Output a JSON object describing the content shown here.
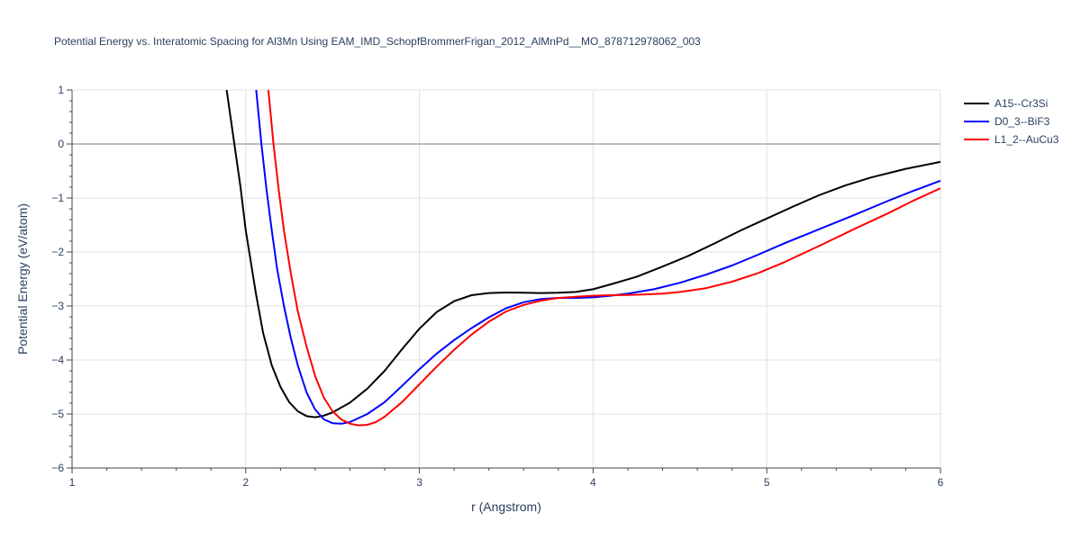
{
  "chart_data": {
    "type": "line",
    "title": "Potential Energy vs. Interatomic Spacing for Al3Mn Using EAM_IMD_SchopfBrommerFrigan_2012_AlMnPd__MO_878712978062_003",
    "xlabel": "r (Angstrom)",
    "ylabel": "Potential Energy (eV/atom)",
    "xlim": [
      1,
      6
    ],
    "ylim": [
      -6,
      1
    ],
    "xticks": [
      1,
      2,
      3,
      4,
      5,
      6
    ],
    "yticks": [
      1,
      0,
      -1,
      -2,
      -3,
      -4,
      -5,
      -6
    ],
    "x_tick_labels": [
      "1",
      "2",
      "3",
      "4",
      "5",
      "6"
    ],
    "y_tick_labels": [
      "1",
      "0",
      "−1",
      "−2",
      "−3",
      "−4",
      "−5",
      "−6"
    ],
    "grid": true,
    "legend_position": "top-right",
    "series": [
      {
        "name": "A15--Cr3Si",
        "color": "#000000",
        "points": [
          [
            1.89,
            1.0
          ],
          [
            1.93,
            0.1
          ],
          [
            1.97,
            -0.8
          ],
          [
            2.0,
            -1.6
          ],
          [
            2.03,
            -2.2
          ],
          [
            2.06,
            -2.8
          ],
          [
            2.1,
            -3.5
          ],
          [
            2.15,
            -4.1
          ],
          [
            2.2,
            -4.5
          ],
          [
            2.25,
            -4.78
          ],
          [
            2.3,
            -4.95
          ],
          [
            2.35,
            -5.04
          ],
          [
            2.4,
            -5.06
          ],
          [
            2.45,
            -5.03
          ],
          [
            2.5,
            -4.97
          ],
          [
            2.6,
            -4.79
          ],
          [
            2.7,
            -4.53
          ],
          [
            2.8,
            -4.2
          ],
          [
            2.9,
            -3.8
          ],
          [
            3.0,
            -3.42
          ],
          [
            3.1,
            -3.11
          ],
          [
            3.2,
            -2.91
          ],
          [
            3.3,
            -2.8
          ],
          [
            3.4,
            -2.76
          ],
          [
            3.5,
            -2.75
          ],
          [
            3.6,
            -2.755
          ],
          [
            3.7,
            -2.76
          ],
          [
            3.8,
            -2.755
          ],
          [
            3.9,
            -2.74
          ],
          [
            4.0,
            -2.69
          ],
          [
            4.1,
            -2.6
          ],
          [
            4.25,
            -2.46
          ],
          [
            4.4,
            -2.27
          ],
          [
            4.55,
            -2.07
          ],
          [
            4.7,
            -1.84
          ],
          [
            4.85,
            -1.6
          ],
          [
            5.0,
            -1.38
          ],
          [
            5.15,
            -1.16
          ],
          [
            5.3,
            -0.95
          ],
          [
            5.45,
            -0.77
          ],
          [
            5.6,
            -0.62
          ],
          [
            5.8,
            -0.46
          ],
          [
            6.0,
            -0.33
          ]
        ]
      },
      {
        "name": "D0_3--BiF3",
        "color": "#0000ff",
        "points": [
          [
            2.06,
            1.0
          ],
          [
            2.09,
            0.0
          ],
          [
            2.12,
            -0.85
          ],
          [
            2.15,
            -1.6
          ],
          [
            2.18,
            -2.3
          ],
          [
            2.22,
            -3.0
          ],
          [
            2.26,
            -3.6
          ],
          [
            2.3,
            -4.1
          ],
          [
            2.35,
            -4.6
          ],
          [
            2.4,
            -4.92
          ],
          [
            2.45,
            -5.1
          ],
          [
            2.5,
            -5.17
          ],
          [
            2.55,
            -5.18
          ],
          [
            2.6,
            -5.15
          ],
          [
            2.7,
            -5.0
          ],
          [
            2.8,
            -4.78
          ],
          [
            2.9,
            -4.48
          ],
          [
            3.0,
            -4.17
          ],
          [
            3.1,
            -3.88
          ],
          [
            3.2,
            -3.63
          ],
          [
            3.3,
            -3.41
          ],
          [
            3.4,
            -3.21
          ],
          [
            3.5,
            -3.04
          ],
          [
            3.6,
            -2.93
          ],
          [
            3.7,
            -2.87
          ],
          [
            3.8,
            -2.85
          ],
          [
            3.9,
            -2.85
          ],
          [
            4.0,
            -2.84
          ],
          [
            4.1,
            -2.81
          ],
          [
            4.2,
            -2.77
          ],
          [
            4.35,
            -2.69
          ],
          [
            4.5,
            -2.57
          ],
          [
            4.65,
            -2.42
          ],
          [
            4.8,
            -2.25
          ],
          [
            4.95,
            -2.05
          ],
          [
            5.1,
            -1.84
          ],
          [
            5.3,
            -1.58
          ],
          [
            5.5,
            -1.32
          ],
          [
            5.7,
            -1.05
          ],
          [
            5.85,
            -0.86
          ],
          [
            6.0,
            -0.68
          ]
        ]
      },
      {
        "name": "L1_2--AuCu3",
        "color": "#ff0000",
        "points": [
          [
            2.13,
            1.0
          ],
          [
            2.16,
            0.0
          ],
          [
            2.19,
            -0.85
          ],
          [
            2.22,
            -1.6
          ],
          [
            2.26,
            -2.4
          ],
          [
            2.3,
            -3.1
          ],
          [
            2.35,
            -3.75
          ],
          [
            2.4,
            -4.3
          ],
          [
            2.45,
            -4.7
          ],
          [
            2.5,
            -4.95
          ],
          [
            2.55,
            -5.1
          ],
          [
            2.6,
            -5.18
          ],
          [
            2.65,
            -5.21
          ],
          [
            2.7,
            -5.2
          ],
          [
            2.75,
            -5.15
          ],
          [
            2.8,
            -5.05
          ],
          [
            2.9,
            -4.78
          ],
          [
            3.0,
            -4.45
          ],
          [
            3.1,
            -4.12
          ],
          [
            3.2,
            -3.81
          ],
          [
            3.3,
            -3.53
          ],
          [
            3.4,
            -3.29
          ],
          [
            3.5,
            -3.1
          ],
          [
            3.6,
            -2.98
          ],
          [
            3.7,
            -2.9
          ],
          [
            3.8,
            -2.85
          ],
          [
            3.9,
            -2.83
          ],
          [
            4.0,
            -2.81
          ],
          [
            4.1,
            -2.8
          ],
          [
            4.2,
            -2.795
          ],
          [
            4.3,
            -2.785
          ],
          [
            4.4,
            -2.77
          ],
          [
            4.5,
            -2.74
          ],
          [
            4.65,
            -2.67
          ],
          [
            4.8,
            -2.55
          ],
          [
            4.95,
            -2.39
          ],
          [
            5.1,
            -2.19
          ],
          [
            5.3,
            -1.89
          ],
          [
            5.5,
            -1.58
          ],
          [
            5.7,
            -1.28
          ],
          [
            5.85,
            -1.04
          ],
          [
            6.0,
            -0.82
          ]
        ]
      }
    ]
  }
}
